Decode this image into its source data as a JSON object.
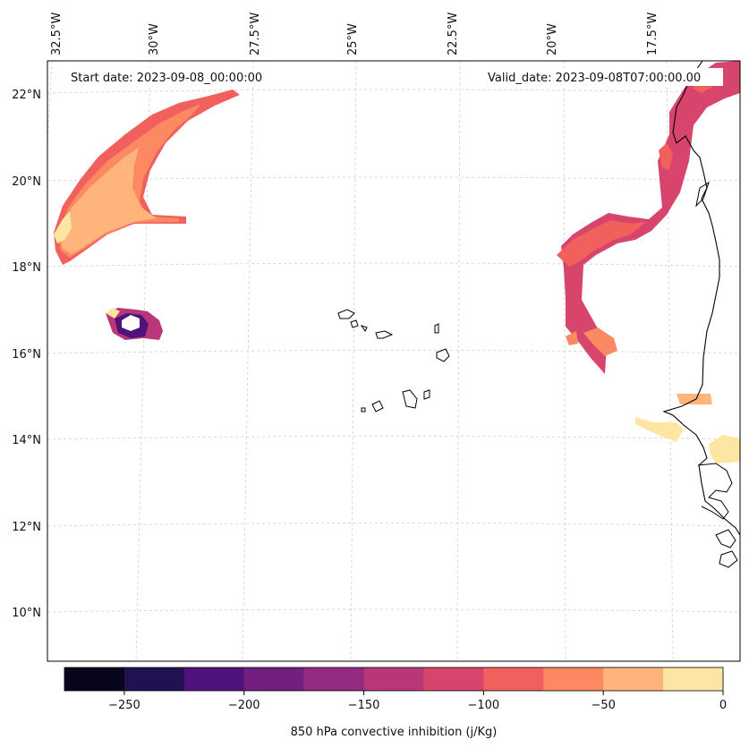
{
  "map": {
    "start_label": "Start date: 2023-09-08_00:00:00",
    "valid_label": "Valid_date: 2023-09-08T07:00:00.00",
    "lon_labels": [
      "32.5°W",
      "30°W",
      "27.5°W",
      "25°W",
      "22.5°W",
      "20°W",
      "17.5°W"
    ],
    "lat_labels": [
      "22°N",
      "20°N",
      "18°N",
      "16°N",
      "14°N",
      "12°N",
      "10°N"
    ]
  },
  "colorbar": {
    "label": "850 hPa convective inhibition (j/Kg)",
    "tick_labels": [
      "−250",
      "−200",
      "−150",
      "−100",
      "−50",
      "0"
    ],
    "levels": [
      -275,
      -250,
      -225,
      -200,
      -175,
      -150,
      -125,
      -100,
      -75,
      -50,
      -25,
      0
    ],
    "colors": [
      "#07061c",
      "#221150",
      "#4f127b",
      "#721f81",
      "#932b80",
      "#b73779",
      "#d8456c",
      "#f1605d",
      "#fc8961",
      "#feb47b",
      "#fde5a4"
    ]
  },
  "colors": {
    "grid": "#cfcfcf",
    "coastline": "#000000"
  }
}
